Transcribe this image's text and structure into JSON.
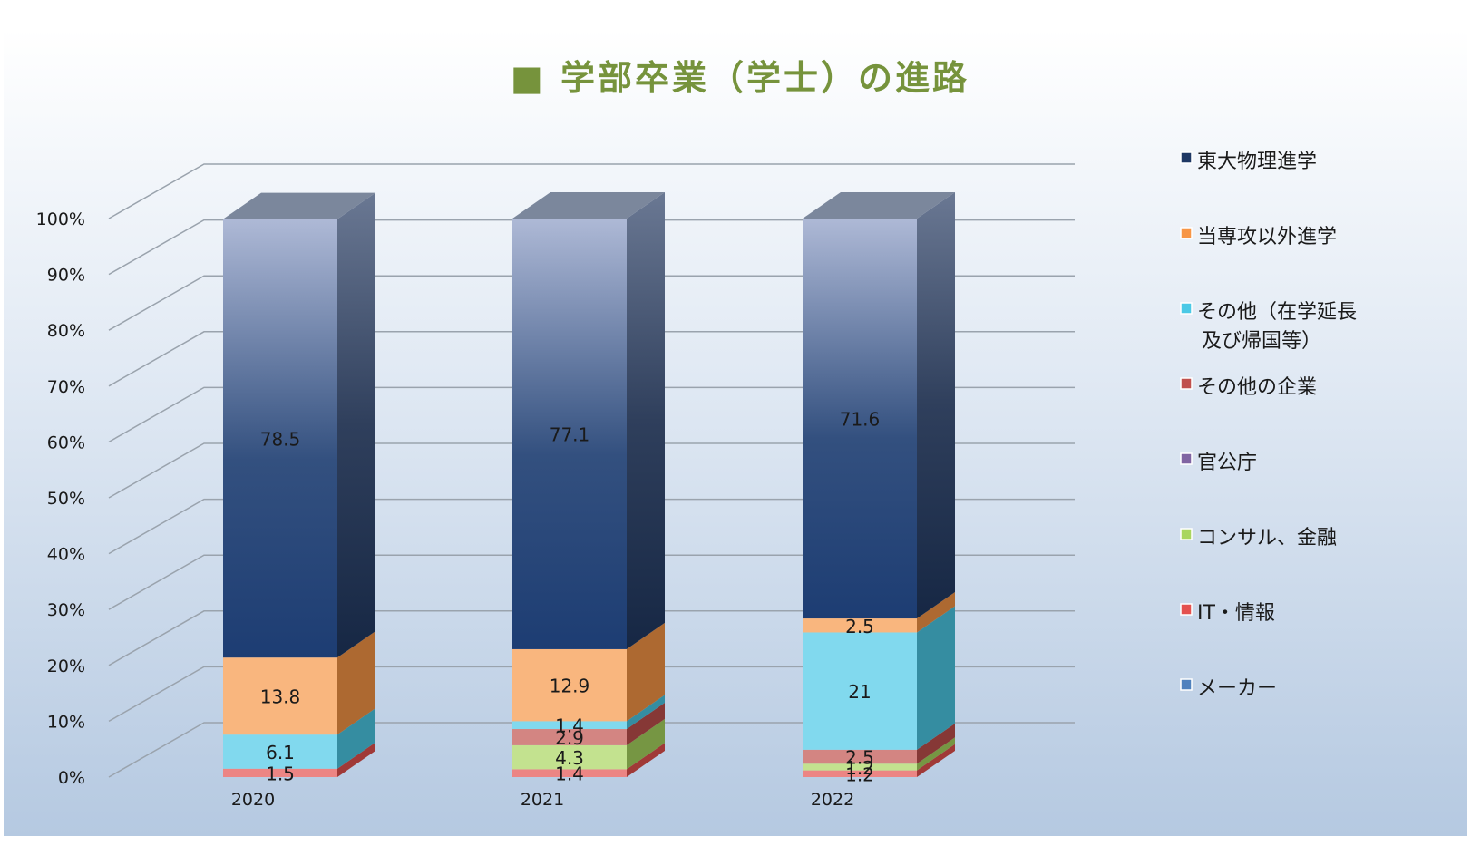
{
  "chart_data": {
    "type": "bar",
    "stacked": true,
    "percent": true,
    "title": "■ 学部卒業（学士）の進路",
    "categories": [
      "2020",
      "2021",
      "2022"
    ],
    "y_ticks": [
      "0%",
      "10%",
      "20%",
      "30%",
      "40%",
      "50%",
      "60%",
      "70%",
      "80%",
      "90%",
      "100%"
    ],
    "ylim": [
      0,
      100
    ],
    "grid": true,
    "legend_position": "right",
    "series": [
      {
        "name": "メーカー",
        "color": "#4F81BD",
        "values": [
          0,
          0,
          0
        ],
        "labels": [
          "",
          "",
          ""
        ]
      },
      {
        "name": "IT・情報",
        "color": "#E4514F",
        "values": [
          1.5,
          1.4,
          1.2
        ],
        "labels": [
          "1.5",
          "1.4",
          "1.2"
        ]
      },
      {
        "name": "コンサル、金融",
        "color": "#A9D65F",
        "values": [
          0,
          4.3,
          1.2
        ],
        "labels": [
          "",
          "4.3",
          "1.2"
        ]
      },
      {
        "name": "官公庁",
        "color": "#8064A2",
        "values": [
          0,
          0,
          0
        ],
        "labels": [
          "",
          "",
          ""
        ]
      },
      {
        "name": "その他の企業",
        "color": "#C0504D",
        "values": [
          0,
          2.9,
          2.5
        ],
        "labels": [
          "",
          "2.9",
          "2.5"
        ]
      },
      {
        "name": "その他（在学延長及び帰国等）",
        "legend_lines": [
          "その他（在学延長",
          "及び帰国等）"
        ],
        "color": "#4BC9E6",
        "values": [
          6.1,
          1.4,
          21
        ],
        "labels": [
          "6.1",
          "1.4",
          "21"
        ]
      },
      {
        "name": "当専攻以外進学",
        "color": "#F79646",
        "values": [
          13.8,
          12.9,
          2.5
        ],
        "labels": [
          "13.8",
          "12.9",
          "2.5"
        ]
      },
      {
        "name": "東大物理進学",
        "color": "#1F3864",
        "values": [
          78.5,
          77.1,
          71.6
        ],
        "labels": [
          "78.5",
          "77.1",
          "71.6"
        ]
      }
    ]
  }
}
